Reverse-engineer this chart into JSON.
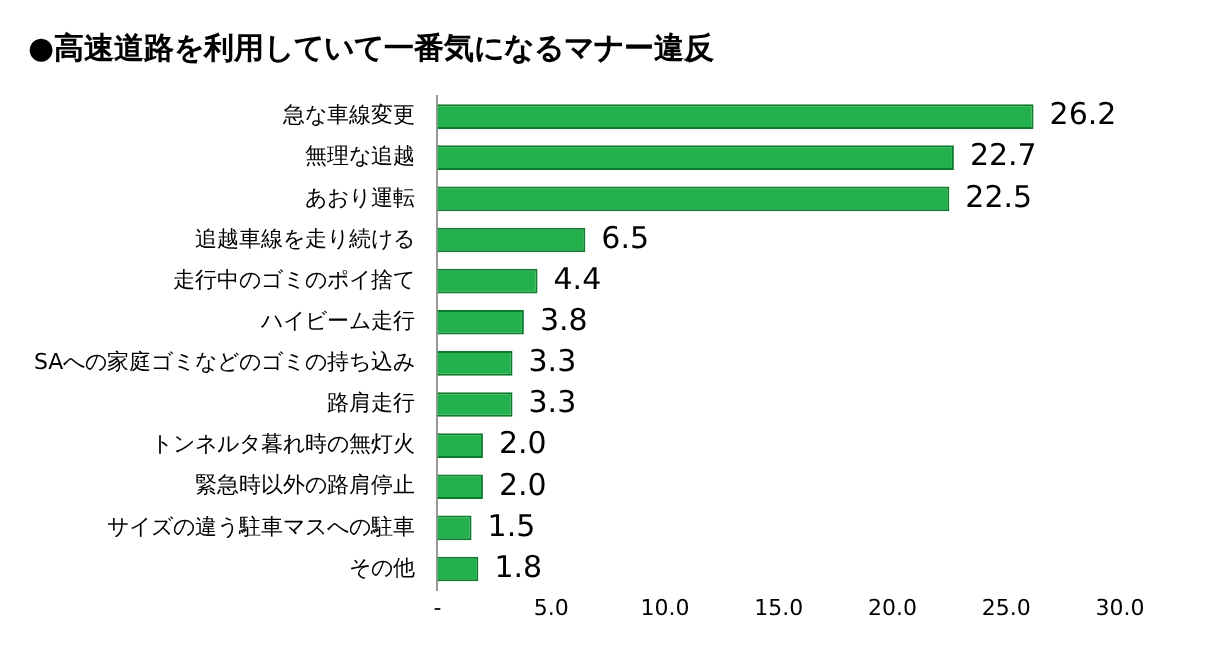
{
  "chart_data": {
    "type": "bar",
    "orientation": "horizontal",
    "title": "●高速道路を利用していて一番気になるマナー違反",
    "categories": [
      "急な車線変更",
      "無理な追越",
      "あおり運転",
      "追越車線を走り続ける",
      "走行中のゴミのポイ捨て",
      "ハイビーム走行",
      "SAへの家庭ゴミなどのゴミの持ち込み",
      "路肩走行",
      "トンネルタ暮れ時の無灯火",
      "緊急時以外の路肩停止",
      "サイズの違う駐車マスへの駐車",
      "その他"
    ],
    "values": [
      26.2,
      22.7,
      22.5,
      6.5,
      4.4,
      3.8,
      3.3,
      3.3,
      2.0,
      2.0,
      1.5,
      1.8
    ],
    "value_labels": [
      "26.2",
      "22.7",
      "22.5",
      "6.5",
      "4.4",
      "3.8",
      "3.3",
      "3.3",
      "2.0",
      "2.0",
      "1.5",
      "1.8"
    ],
    "color": "#22b14c",
    "xlim": [
      0,
      30
    ],
    "xticks": [
      {
        "value": 0,
        "label": "-"
      },
      {
        "value": 5,
        "label": "5.0"
      },
      {
        "value": 10,
        "label": "10.0"
      },
      {
        "value": 15,
        "label": "15.0"
      },
      {
        "value": 20,
        "label": "20.0"
      },
      {
        "value": 25,
        "label": "25.0"
      },
      {
        "value": 30,
        "label": "30.0"
      }
    ],
    "grid": false,
    "legend": false
  }
}
